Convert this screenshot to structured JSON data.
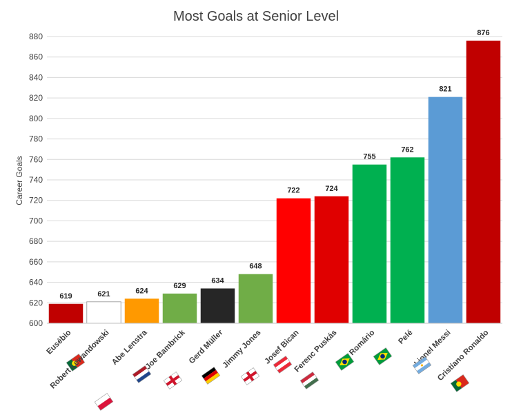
{
  "chart_data": {
    "type": "bar",
    "title": "Most Goals at Senior Level",
    "ylabel": "Career Goals",
    "xlabel": "",
    "ylim": [
      600,
      880
    ],
    "yticks": [
      600,
      620,
      640,
      660,
      680,
      700,
      720,
      740,
      760,
      780,
      800,
      820,
      840,
      860,
      880
    ],
    "grid": true,
    "legend": "none",
    "categories": [
      "Eusébio",
      "Robert Lewandowski",
      "Abe Lenstra",
      "Joe Bambrick",
      "Gerd Müller",
      "Jimmy Jones",
      "Josef Bican",
      "Ferenc Puskás",
      "Romário",
      "Pelé",
      "Lionel Messi",
      "Cristiano Ronaldo"
    ],
    "values": [
      619,
      621,
      624,
      629,
      634,
      648,
      722,
      724,
      755,
      762,
      821,
      876
    ],
    "colors": [
      "#c00000",
      "#ffffff",
      "#ff9900",
      "#70ad47",
      "#262626",
      "#70ad47",
      "#ff0000",
      "#e00000",
      "#00b050",
      "#00b050",
      "#5b9bd5",
      "#c00000"
    ],
    "flags": [
      "portugal-flag-icon",
      "poland-flag-icon",
      "netherlands-flag-icon",
      "northern-ireland-flag-icon",
      "germany-flag-icon",
      "northern-ireland-flag-icon",
      "austria-flag-icon",
      "hungary-flag-icon",
      "brazil-flag-icon",
      "brazil-flag-icon",
      "argentina-flag-icon",
      "portugal-flag-icon"
    ]
  }
}
